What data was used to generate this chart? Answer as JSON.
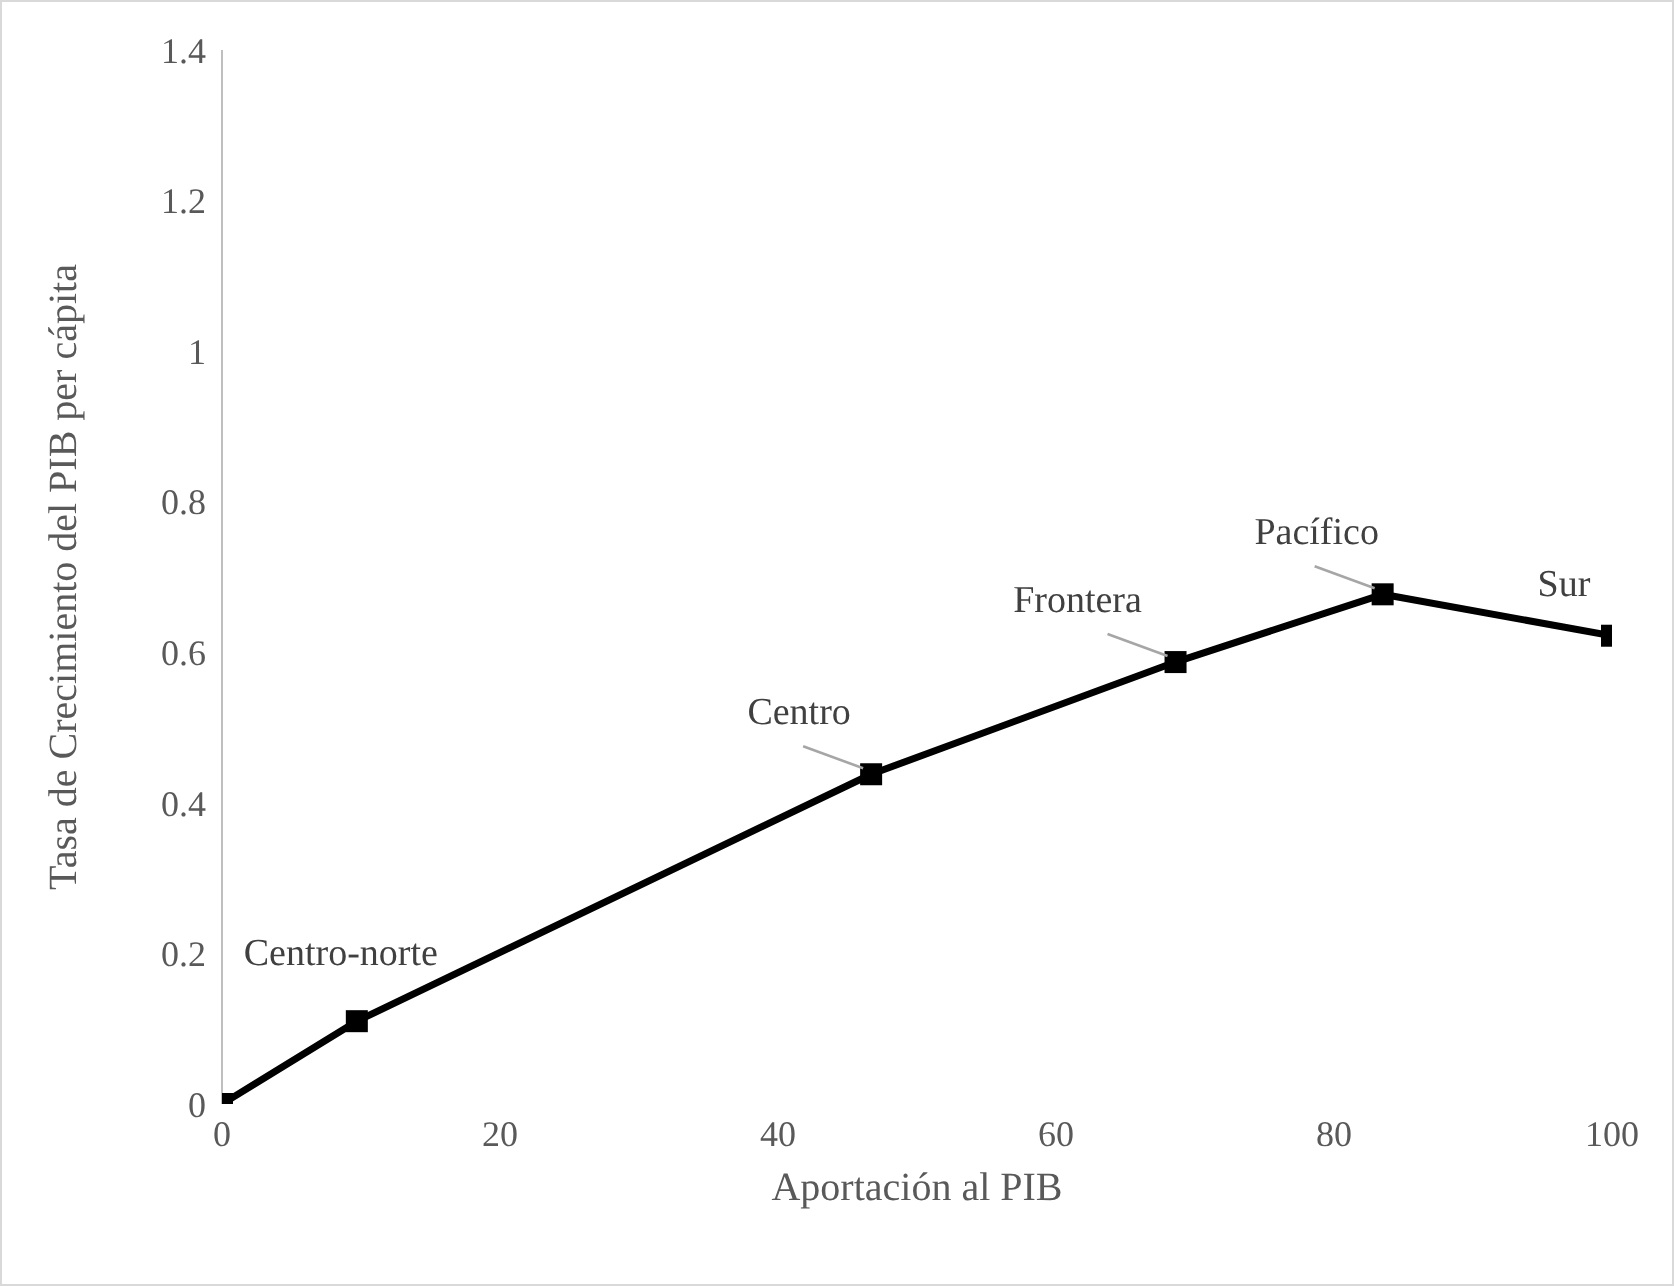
{
  "chart_data": {
    "type": "line",
    "xlabel": "Aportación al PIB",
    "ylabel": "Tasa de Crecimiento del PIB per cápita",
    "x": [
      0,
      9.7,
      46.7,
      68.6,
      83.5,
      100
    ],
    "series": [
      {
        "color": "#000000",
        "values": [
          0,
          0.11,
          0.438,
          0.587,
          0.677,
          0.622
        ]
      }
    ],
    "xlim": [
      0,
      100
    ],
    "xticks": [
      0,
      20,
      40,
      60,
      80,
      100
    ],
    "ylim": [
      0,
      1.4
    ],
    "yticks": [
      0,
      0.2,
      0.4,
      0.6,
      0.8,
      1,
      1.2,
      1.4
    ],
    "grid": false,
    "legend": false,
    "marker": "square",
    "line_style": "solid",
    "annotations": [
      {
        "text": "Centro-norte",
        "x": 9.7,
        "y": 0.11
      },
      {
        "text": "Centro",
        "x": 46.7,
        "y": 0.438
      },
      {
        "text": "Frontera",
        "x": 68.6,
        "y": 0.587
      },
      {
        "text": "Pacífico",
        "x": 83.5,
        "y": 0.677
      },
      {
        "text": "Sur",
        "x": 100,
        "y": 0.622
      }
    ]
  }
}
